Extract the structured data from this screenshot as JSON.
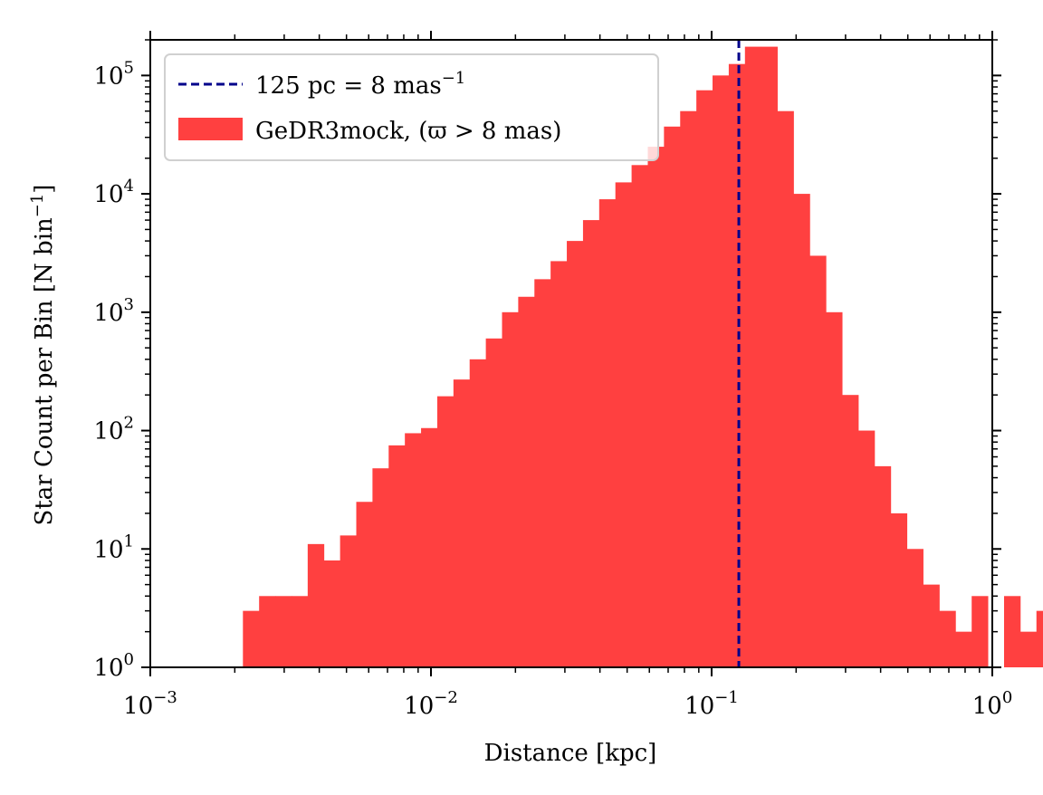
{
  "chart_data": {
    "type": "histogram",
    "title": "",
    "xlabel": "Distance [kpc]",
    "ylabel": "Star Count per Bin [N bin",
    "ylabel_sup": "−1",
    "ylabel_close": "]",
    "xscale": "log",
    "yscale": "log",
    "xlim": [
      0.001,
      1.0
    ],
    "ylim": [
      1,
      200000
    ],
    "xtick_labels": [
      {
        "value": 0.001,
        "base": "10",
        "exp": "−3"
      },
      {
        "value": 0.01,
        "base": "10",
        "exp": "−2"
      },
      {
        "value": 0.1,
        "base": "10",
        "exp": "−1"
      },
      {
        "value": 1.0,
        "base": "10",
        "exp": "0"
      }
    ],
    "ytick_labels": [
      {
        "value": 1,
        "base": "10",
        "exp": "0"
      },
      {
        "value": 10,
        "base": "10",
        "exp": "1"
      },
      {
        "value": 100,
        "base": "10",
        "exp": "2"
      },
      {
        "value": 1000,
        "base": "10",
        "exp": "3"
      },
      {
        "value": 10000,
        "base": "10",
        "exp": "4"
      },
      {
        "value": 100000,
        "base": "10",
        "exp": "5"
      }
    ],
    "histogram": {
      "name": "GeDR3mock, (ϖ > 8 mas)",
      "color": "#ff4040",
      "bin_log_start": -2.67,
      "bin_log_width": 0.0577,
      "counts": [
        3,
        4,
        4,
        4,
        11,
        8,
        13,
        25,
        48,
        75,
        95,
        105,
        195,
        270,
        400,
        600,
        1000,
        1350,
        1900,
        2700,
        4000,
        6000,
        9000,
        12500,
        17500,
        25000,
        37000,
        50000,
        75000,
        100000,
        125000,
        175000,
        175000,
        50000,
        10000,
        3000,
        1000,
        200,
        100,
        50,
        20,
        10,
        5,
        3,
        2,
        4,
        0,
        4,
        2,
        3
      ]
    },
    "vline": {
      "name": "125 pc = 8 mas",
      "name_sup": "−1",
      "x": 0.125,
      "color": "#00008b",
      "style": "dashed"
    },
    "legend": {
      "location": "upper-left",
      "entries": [
        {
          "kind": "line",
          "label": "125 pc = 8 mas",
          "sup": "−1"
        },
        {
          "kind": "patch",
          "label": "GeDR3mock, (ϖ > 8 mas)"
        }
      ]
    }
  }
}
